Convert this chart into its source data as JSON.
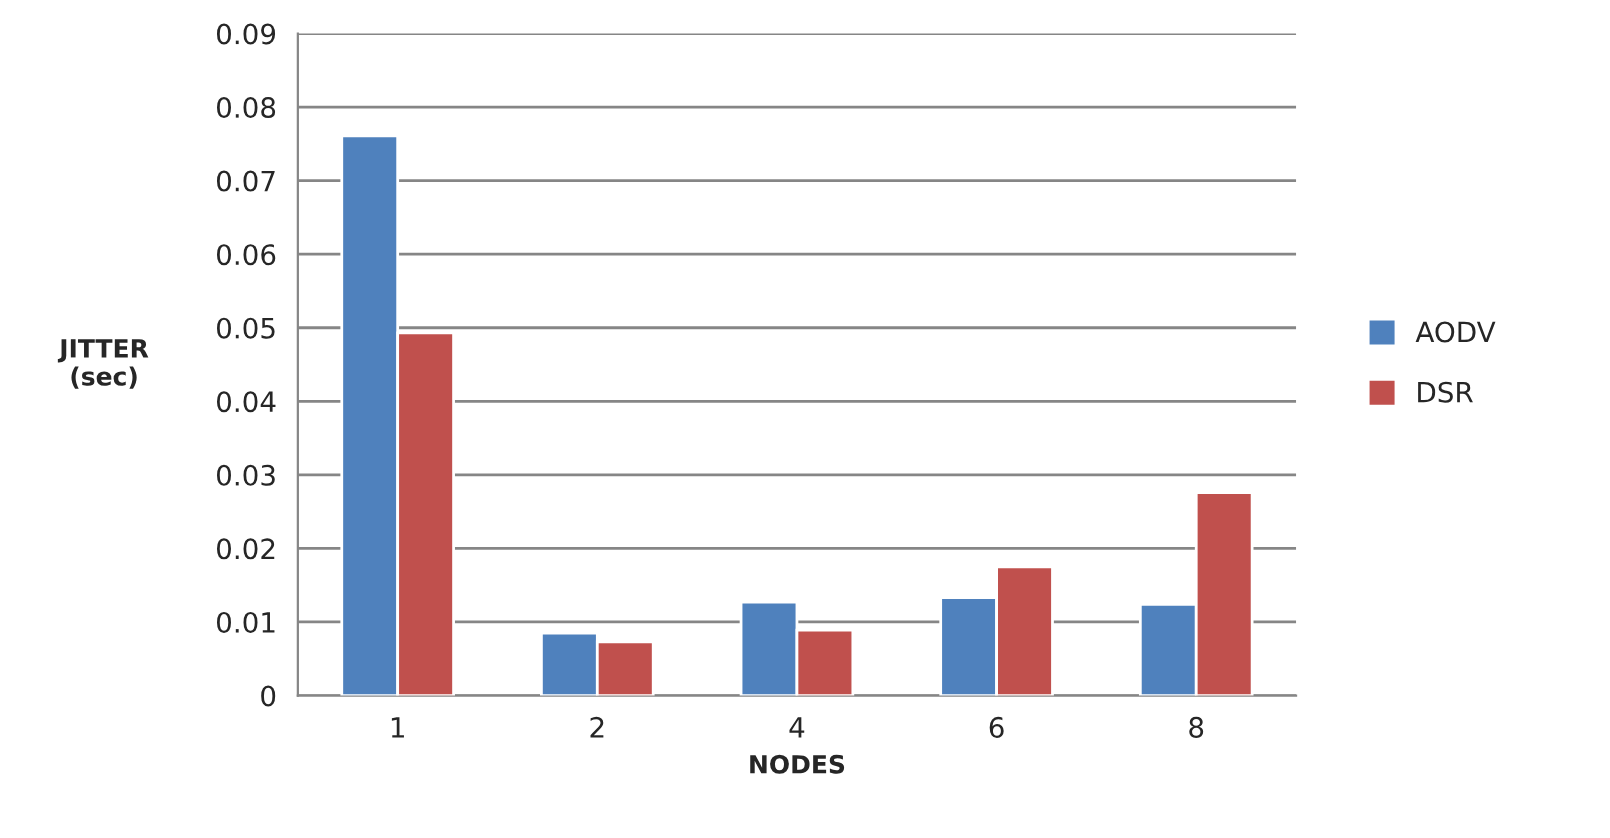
{
  "chart_data": {
    "type": "bar",
    "xlabel": "NODES",
    "ylabel": "JITTER\n(sec)",
    "categories": [
      "1",
      "2",
      "4",
      "6",
      "8"
    ],
    "series": [
      {
        "name": "AODV",
        "color": "#4f81bd",
        "values": [
          0.0761,
          0.0085,
          0.0127,
          0.0133,
          0.0124
        ]
      },
      {
        "name": "DSR",
        "color": "#c0504d",
        "values": [
          0.0493,
          0.0073,
          0.0089,
          0.0175,
          0.0276
        ]
      }
    ],
    "ylim": [
      0,
      0.09
    ],
    "yticks": [
      {
        "value": 0,
        "label": "0"
      },
      0.01,
      0.02,
      0.03,
      0.04,
      0.05,
      0.06,
      0.07,
      0.08,
      0.09
    ],
    "grid": "y",
    "legend": "right"
  }
}
